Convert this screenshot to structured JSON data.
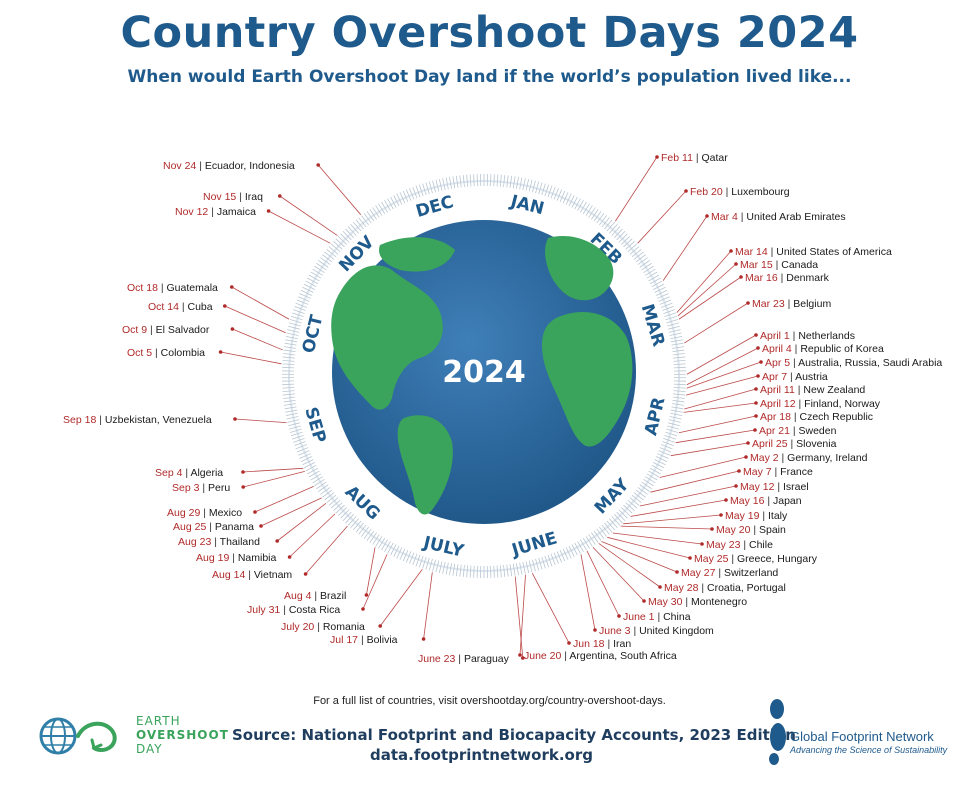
{
  "title": "Country Overshoot Days 2024",
  "subtitle": "When would Earth Overshoot Day land if the world’s population lived like...",
  "center_label": "2024",
  "months": [
    "JAN",
    "FEB",
    "MAR",
    "APR",
    "MAY",
    "JUNE",
    "JULY",
    "AUG",
    "SEP",
    "OCT",
    "NOV",
    "DEC"
  ],
  "colors": {
    "title": "#1f5a8c",
    "date": "#b02a2a",
    "ocean": "#2e6da4",
    "land": "#3aa35c",
    "ring": "#1f5a8c"
  },
  "entries": [
    {
      "date": "Feb 11",
      "country": "Qatar"
    },
    {
      "date": "Feb 20",
      "country": "Luxembourg"
    },
    {
      "date": "Mar 4",
      "country": "United Arab Emirates"
    },
    {
      "date": "Mar 14",
      "country": "United States of America"
    },
    {
      "date": "Mar 15",
      "country": "Canada"
    },
    {
      "date": "Mar 16",
      "country": "Denmark"
    },
    {
      "date": "Mar 23",
      "country": "Belgium"
    },
    {
      "date": "April 1",
      "country": "Netherlands"
    },
    {
      "date": "April 4",
      "country": "Republic of Korea"
    },
    {
      "date": "Apr 5",
      "country": "Australia, Russia, Saudi Arabia"
    },
    {
      "date": "Apr 7",
      "country": "Austria"
    },
    {
      "date": "April 11",
      "country": "New Zealand"
    },
    {
      "date": "April 12",
      "country": "Finland, Norway"
    },
    {
      "date": "Apr 18",
      "country": "Czech Republic"
    },
    {
      "date": "Apr 21",
      "country": "Sweden"
    },
    {
      "date": "April 25",
      "country": "Slovenia"
    },
    {
      "date": "May 2",
      "country": "Germany, Ireland"
    },
    {
      "date": "May 7",
      "country": "France"
    },
    {
      "date": "May 12",
      "country": "Israel"
    },
    {
      "date": "May 16",
      "country": "Japan"
    },
    {
      "date": "May 19",
      "country": "Italy"
    },
    {
      "date": "May 20",
      "country": "Spain"
    },
    {
      "date": "May 23",
      "country": "Chile"
    },
    {
      "date": "May 25",
      "country": "Greece, Hungary"
    },
    {
      "date": "May 27",
      "country": "Switzerland"
    },
    {
      "date": "May 28",
      "country": "Croatia, Portugal"
    },
    {
      "date": "May 30",
      "country": "Montenegro"
    },
    {
      "date": "June 1",
      "country": "China"
    },
    {
      "date": "June 3",
      "country": "United Kingdom"
    },
    {
      "date": "Jun 18",
      "country": "Iran"
    },
    {
      "date": "June 20",
      "country": "Argentina, South Africa"
    },
    {
      "date": "June 23",
      "country": "Paraguay"
    },
    {
      "date": "Jul 17",
      "country": "Bolivia"
    },
    {
      "date": "July 20",
      "country": "Romania"
    },
    {
      "date": "July 31",
      "country": "Costa Rica"
    },
    {
      "date": "Aug 4",
      "country": "Brazil"
    },
    {
      "date": "Aug 14",
      "country": "Vietnam"
    },
    {
      "date": "Aug 19",
      "country": "Namibia"
    },
    {
      "date": "Aug 23",
      "country": "Thailand"
    },
    {
      "date": "Aug 25",
      "country": "Panama"
    },
    {
      "date": "Aug 29",
      "country": "Mexico"
    },
    {
      "date": "Sep 3",
      "country": "Peru"
    },
    {
      "date": "Sep 4",
      "country": "Algeria"
    },
    {
      "date": "Sep 18",
      "country": "Uzbekistan, Venezuela"
    },
    {
      "date": "Oct 5",
      "country": "Colombia"
    },
    {
      "date": "Oct 9",
      "country": "El Salvador"
    },
    {
      "date": "Oct 14",
      "country": "Cuba"
    },
    {
      "date": "Oct 18",
      "country": "Guatemala"
    },
    {
      "date": "Nov 12",
      "country": "Jamaica"
    },
    {
      "date": "Nov 15",
      "country": "Iraq"
    },
    {
      "date": "Nov 24",
      "country": "Ecuador, Indonesia"
    }
  ],
  "footer": {
    "note": "For a full list of countries, visit overshootday.org/country-overshoot-days.",
    "source": "Source: National Footprint and Biocapacity Accounts, 2023 Edition",
    "source_url": "data.footprintnetwork.org",
    "eod_line1": "EARTH",
    "eod_line2": "OVERSHOOT",
    "eod_line3": "DAY",
    "gfn_name": "Global Footprint Network",
    "gfn_tagline": "Advancing the Science of Sustainability"
  }
}
